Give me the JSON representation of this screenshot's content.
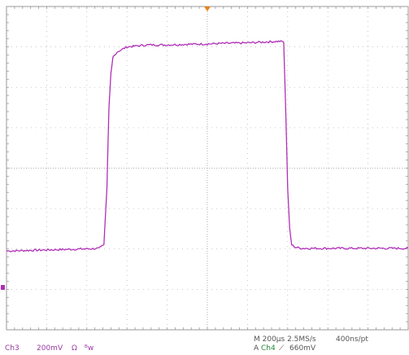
{
  "chart_data": {
    "type": "line",
    "title": "",
    "xlabel": "",
    "ylabel": "",
    "grid": true,
    "x_divisions": 10,
    "y_divisions": 8,
    "xlim": [
      -1000,
      1000
    ],
    "ylim": [
      -800,
      800
    ],
    "time_unit": "us",
    "volt_unit": "mV",
    "series": [
      {
        "color": "#b02fb8",
        "x": [
          -1000,
          -540,
          -515,
          -500,
          -490,
          -480,
          -470,
          -450,
          -430,
          -400,
          -350,
          -300,
          -200,
          -100,
          0,
          100,
          200,
          300,
          360,
          380,
          390,
          400,
          410,
          420,
          440,
          470,
          500,
          600,
          700,
          800,
          900,
          1000
        ],
        "y": [
          -410,
          -398,
          -380,
          -100,
          300,
          470,
          550,
          575,
          585,
          600,
          605,
          610,
          610,
          613,
          615,
          618,
          620,
          625,
          628,
          625,
          300,
          -100,
          -300,
          -380,
          -392,
          -397,
          -397,
          -397,
          -397,
          -397,
          -397,
          -397
        ]
      }
    ]
  },
  "trigger": {
    "marker_color": "#e8831a"
  },
  "channel_marker": {
    "color": "#b02fb8"
  },
  "status": {
    "channel": "Ch3",
    "scale": "200mV",
    "coupling": "Ω",
    "bw": "ᴮw",
    "timebase": "M 200µs 2.5MS/s",
    "record": "400ns/pt",
    "trigger_mode": "A",
    "trigger_source": "Ch4",
    "trigger_slope": "⟋",
    "trigger_level": "660mV"
  }
}
